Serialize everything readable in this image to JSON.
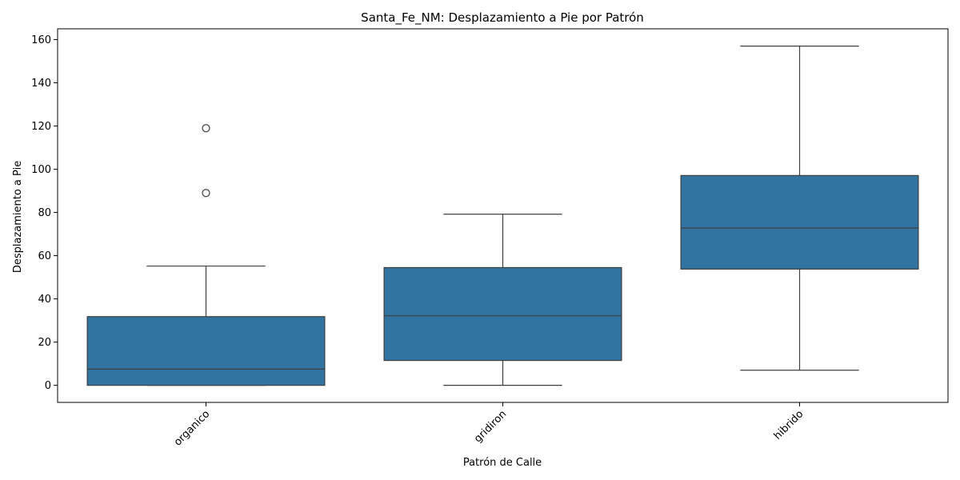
{
  "chart_data": {
    "type": "box",
    "title": "Santa_Fe_NM: Desplazamiento a Pie por Patrón",
    "xlabel": "Patrón de Calle",
    "ylabel": "Desplazamiento a Pie",
    "categories": [
      "organico",
      "gridiron",
      "hibrido"
    ],
    "boxes": [
      {
        "category": "organico",
        "whisker_low": 0,
        "q1": 0,
        "median": 7.5,
        "q3": 31.8,
        "whisker_high": 55.2,
        "outliers": [
          89,
          119
        ]
      },
      {
        "category": "gridiron",
        "whisker_low": 0,
        "q1": 11.5,
        "median": 32.2,
        "q3": 54.5,
        "whisker_high": 79.2,
        "outliers": []
      },
      {
        "category": "hibrido",
        "whisker_low": 7,
        "q1": 53.8,
        "median": 72.8,
        "q3": 97.1,
        "whisker_high": 157,
        "outliers": []
      }
    ],
    "y_ticks": [
      0,
      20,
      40,
      60,
      80,
      100,
      120,
      140,
      160
    ],
    "ylim": [
      -7.9,
      165
    ],
    "grid": false,
    "box_color": "#3274a1",
    "line_color": "#3f3f3f"
  }
}
